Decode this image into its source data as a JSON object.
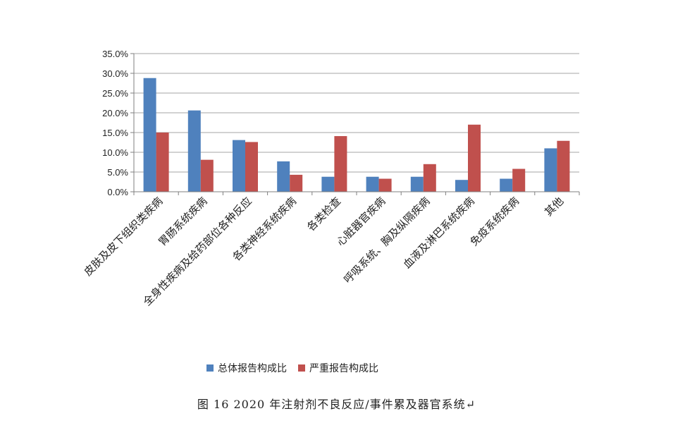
{
  "chart_data": {
    "type": "bar",
    "categories": [
      "皮肤及皮下组织类疾病",
      "胃肠系统疾病",
      "全身性疾病及给药部位各种反应",
      "各类神经系统疾病",
      "各类检查",
      "心脏器官疾病",
      "呼吸系统、胸及纵隔疾病",
      "血液及淋巴系统疾病",
      "免疫系统疾病",
      "其他"
    ],
    "series": [
      {
        "name": "总体报告构成比",
        "color": "#4F81BD",
        "values": [
          28.8,
          20.6,
          13.1,
          7.7,
          3.8,
          3.8,
          3.8,
          3.0,
          3.3,
          11.0
        ]
      },
      {
        "name": "严重报告构成比",
        "color": "#C0504D",
        "values": [
          15.0,
          8.1,
          12.6,
          4.3,
          14.1,
          3.3,
          7.0,
          17.0,
          5.8,
          12.9
        ]
      }
    ],
    "y_ticks": [
      "0.0%",
      "5.0%",
      "10.0%",
      "15.0%",
      "20.0%",
      "25.0%",
      "30.0%",
      "35.0%"
    ],
    "ylim": [
      0,
      35
    ],
    "grid": true,
    "legend_position": "bottom"
  },
  "caption": "图 16   2020 年注射剂不良反应/事件累及器官系统↵"
}
